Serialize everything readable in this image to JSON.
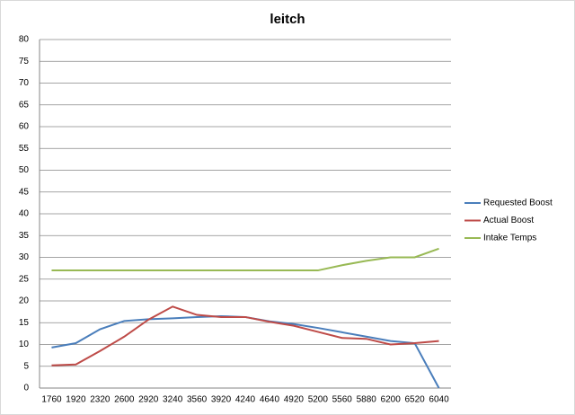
{
  "chart_data": {
    "type": "line",
    "title": "leitch",
    "categories": [
      "1760",
      "1920",
      "2320",
      "2600",
      "2920",
      "3240",
      "3560",
      "3920",
      "4240",
      "4640",
      "4920",
      "5200",
      "5560",
      "5880",
      "6200",
      "6520",
      "6040"
    ],
    "series": [
      {
        "name": "Requested Boost",
        "color": "#4a7ebb",
        "values": [
          9.3,
          10.3,
          13.5,
          15.4,
          15.8,
          16.0,
          16.3,
          16.5,
          16.3,
          15.3,
          14.7,
          13.8,
          12.8,
          11.8,
          10.8,
          10.3,
          0
        ]
      },
      {
        "name": "Actual Boost",
        "color": "#be4b48",
        "values": [
          5.2,
          5.4,
          8.5,
          11.8,
          15.7,
          18.7,
          16.8,
          16.3,
          16.3,
          15.2,
          14.3,
          12.9,
          11.5,
          11.3,
          10.0,
          10.3,
          10.8
        ]
      },
      {
        "name": "Intake Temps",
        "color": "#98b954",
        "values": [
          27,
          27,
          27,
          27,
          27,
          27,
          27,
          27,
          27,
          27,
          27,
          27,
          28.2,
          29.2,
          30,
          30,
          32
        ]
      }
    ],
    "ylim": [
      0,
      80
    ],
    "yticks": [
      0,
      5,
      10,
      15,
      20,
      25,
      30,
      35,
      40,
      45,
      50,
      55,
      60,
      65,
      70,
      75,
      80
    ],
    "grid": true,
    "legend": "right"
  }
}
